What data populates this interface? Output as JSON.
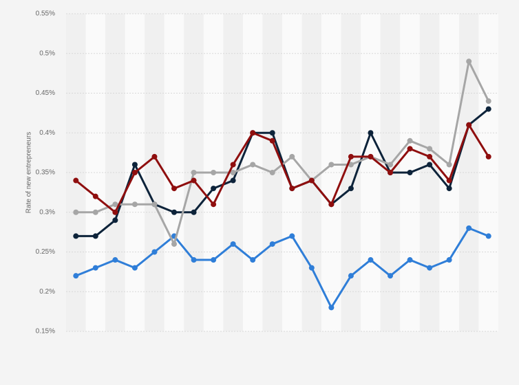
{
  "chart_data": {
    "type": "line",
    "ylabel": "Rate of new entrepreneurs",
    "categories": [
      null,
      null,
      null,
      null,
      null,
      null,
      null,
      null,
      null,
      null,
      null,
      null,
      null,
      null,
      null,
      null,
      null,
      null,
      null,
      null,
      null,
      null
    ],
    "series": [
      {
        "color": "#2f7ed8",
        "values": [
          0.22,
          0.23,
          0.24,
          0.23,
          0.25,
          0.27,
          0.24,
          0.24,
          0.26,
          0.24,
          0.26,
          0.27,
          0.23,
          0.18,
          0.22,
          0.24,
          0.22,
          0.24,
          0.23,
          0.24,
          0.28,
          0.27
        ]
      },
      {
        "color": "#0d233a",
        "values": [
          0.27,
          0.27,
          0.29,
          0.36,
          0.31,
          0.3,
          0.3,
          0.33,
          0.34,
          0.4,
          0.4,
          0.33,
          0.34,
          0.31,
          0.33,
          0.4,
          0.35,
          0.35,
          0.36,
          0.33,
          0.41,
          0.43
        ]
      },
      {
        "color": "#a6a6a6",
        "values": [
          0.3,
          0.3,
          0.31,
          0.31,
          0.31,
          0.26,
          0.35,
          0.35,
          0.35,
          0.36,
          0.35,
          0.37,
          0.34,
          0.36,
          0.36,
          0.37,
          0.36,
          0.39,
          0.38,
          0.36,
          0.49,
          0.44
        ]
      },
      {
        "color": "#8f0e0e",
        "values": [
          0.34,
          0.32,
          0.3,
          0.35,
          0.37,
          0.33,
          0.34,
          0.31,
          0.36,
          0.4,
          0.39,
          0.33,
          0.34,
          0.31,
          0.37,
          0.37,
          0.35,
          0.38,
          0.37,
          0.34,
          0.41,
          0.37
        ]
      }
    ],
    "ylim": [
      0.15,
      0.55
    ],
    "yticks": [
      {
        "value": 0.15,
        "label": "0.15%"
      },
      {
        "value": 0.2,
        "label": "0.2%"
      },
      {
        "value": 0.25,
        "label": "0.25%"
      },
      {
        "value": 0.3,
        "label": "0.3%"
      },
      {
        "value": 0.35,
        "label": "0.35%"
      },
      {
        "value": 0.4,
        "label": "0.4%"
      },
      {
        "value": 0.45,
        "label": "0.45%"
      },
      {
        "value": 0.5,
        "label": "0.5%"
      },
      {
        "value": 0.55,
        "label": "0.55%"
      }
    ],
    "grid": true
  }
}
